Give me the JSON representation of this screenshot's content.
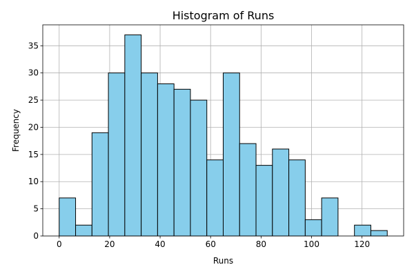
{
  "chart_data": {
    "type": "bar",
    "title": "Histogram of Runs",
    "xlabel": "Runs",
    "ylabel": "Frequency",
    "bin_edges": [
      0,
      6.5,
      13,
      19.5,
      26,
      32.5,
      39,
      45.5,
      52,
      58.5,
      65,
      71.5,
      78,
      84.5,
      91,
      97.5,
      104,
      110.5,
      117,
      123.5,
      130
    ],
    "values": [
      7,
      2,
      19,
      30,
      37,
      30,
      28,
      27,
      25,
      14,
      30,
      17,
      13,
      16,
      14,
      3,
      7,
      0,
      2,
      1
    ],
    "xlim": [
      -6.5,
      136.5
    ],
    "ylim": [
      0,
      38.85
    ],
    "xticks": [
      0,
      20,
      40,
      60,
      80,
      100,
      120
    ],
    "yticks": [
      0,
      5,
      10,
      15,
      20,
      25,
      30,
      35
    ],
    "grid": true,
    "bar_color": "#87ceeb",
    "edge_color": "#000000",
    "grid_color": "#b0b0b0"
  }
}
